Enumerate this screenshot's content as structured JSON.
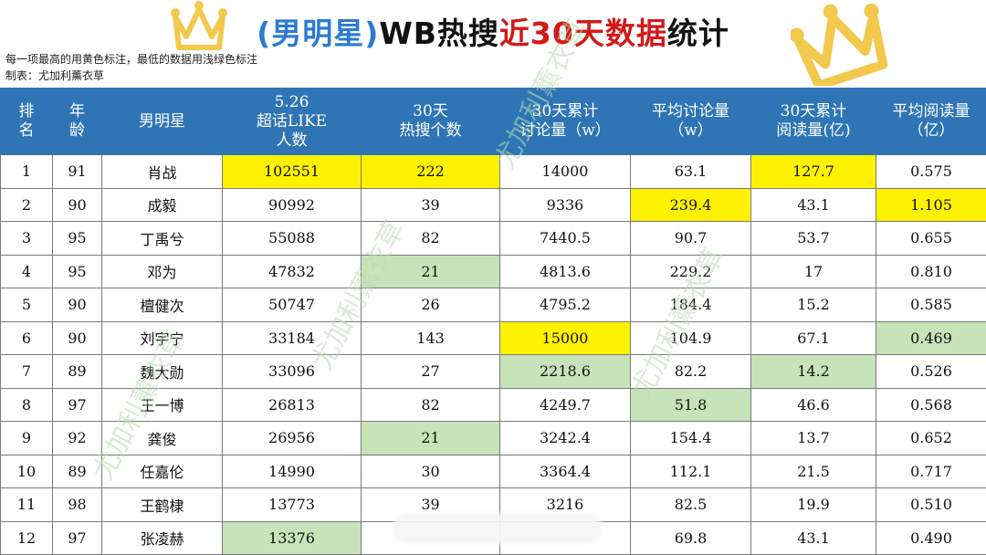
{
  "title": {
    "part1": "(男明星)",
    "part2": "WB热搜",
    "part3": "近30天数据",
    "part4": "统计"
  },
  "notes": {
    "line1": "每一项最高的用黄色标注，最低的数据用浅绿色标注",
    "line2": "制表：尤加利薰衣草"
  },
  "headers": {
    "rank": [
      "排",
      "名"
    ],
    "age": [
      "年",
      "龄"
    ],
    "star": "男明星",
    "like": [
      "5.26",
      "超话LIKE",
      "人数"
    ],
    "hot": [
      "30天",
      "热搜个数"
    ],
    "discuss": [
      "30天累计",
      "讨论量（w）"
    ],
    "avg_discuss": [
      "平均讨论量",
      "（w）"
    ],
    "read": [
      "30天累计",
      "阅读量(亿)"
    ],
    "avg_read": [
      "平均阅读量",
      "（亿）"
    ]
  },
  "rows": [
    {
      "rank": "1",
      "age": "91",
      "name": "肖战",
      "like": "102551",
      "hot": "222",
      "discuss": "14000",
      "avg_discuss": "63.1",
      "read": "127.7",
      "avg_read": "0.575"
    },
    {
      "rank": "2",
      "age": "90",
      "name": "成毅",
      "like": "90992",
      "hot": "39",
      "discuss": "9336",
      "avg_discuss": "239.4",
      "read": "43.1",
      "avg_read": "1.105"
    },
    {
      "rank": "3",
      "age": "95",
      "name": "丁禹兮",
      "like": "55088",
      "hot": "82",
      "discuss": "7440.5",
      "avg_discuss": "90.7",
      "read": "53.7",
      "avg_read": "0.655"
    },
    {
      "rank": "4",
      "age": "95",
      "name": "邓为",
      "like": "47832",
      "hot": "21",
      "discuss": "4813.6",
      "avg_discuss": "229.2",
      "read": "17",
      "avg_read": "0.810"
    },
    {
      "rank": "5",
      "age": "90",
      "name": "檀健次",
      "like": "50747",
      "hot": "26",
      "discuss": "4795.2",
      "avg_discuss": "184.4",
      "read": "15.2",
      "avg_read": "0.585"
    },
    {
      "rank": "6",
      "age": "90",
      "name": "刘宇宁",
      "like": "33184",
      "hot": "143",
      "discuss": "15000",
      "avg_discuss": "104.9",
      "read": "67.1",
      "avg_read": "0.469"
    },
    {
      "rank": "7",
      "age": "89",
      "name": "魏大勋",
      "like": "33096",
      "hot": "27",
      "discuss": "2218.6",
      "avg_discuss": "82.2",
      "read": "14.2",
      "avg_read": "0.526"
    },
    {
      "rank": "8",
      "age": "97",
      "name": "王一博",
      "like": "26813",
      "hot": "82",
      "discuss": "4249.7",
      "avg_discuss": "51.8",
      "read": "46.6",
      "avg_read": "0.568"
    },
    {
      "rank": "9",
      "age": "92",
      "name": "龚俊",
      "like": "26956",
      "hot": "21",
      "discuss": "3242.4",
      "avg_discuss": "154.4",
      "read": "13.7",
      "avg_read": "0.652"
    },
    {
      "rank": "10",
      "age": "89",
      "name": "任嘉伦",
      "like": "14990",
      "hot": "30",
      "discuss": "3364.4",
      "avg_discuss": "112.1",
      "read": "21.5",
      "avg_read": "0.717"
    },
    {
      "rank": "11",
      "age": "98",
      "name": "王鹤棣",
      "like": "13773",
      "hot": "39",
      "discuss": "3216",
      "avg_discuss": "82.5",
      "read": "19.9",
      "avg_read": "0.510"
    },
    {
      "rank": "12",
      "age": "97",
      "name": "张凌赫",
      "like": "13376",
      "hot": "",
      "discuss": "",
      "avg_discuss": "69.8",
      "read": "43.1",
      "avg_read": "0.490"
    }
  ],
  "highlights": {
    "yellow": [
      [
        0,
        "like"
      ],
      [
        0,
        "hot"
      ],
      [
        0,
        "read"
      ],
      [
        1,
        "avg_discuss"
      ],
      [
        1,
        "avg_read"
      ],
      [
        5,
        "discuss"
      ]
    ],
    "green": [
      [
        3,
        "hot"
      ],
      [
        5,
        "avg_read"
      ],
      [
        6,
        "discuss"
      ],
      [
        6,
        "read"
      ],
      [
        7,
        "avg_discuss"
      ],
      [
        8,
        "hot"
      ],
      [
        11,
        "like"
      ]
    ]
  },
  "colors": {
    "header_bg": "#2f75b5",
    "highlight_max": "#fff200",
    "highlight_min": "#c7e3b9",
    "crown": "#f2c94c",
    "title_blue": "#2a7bd3",
    "title_red": "#d21919"
  },
  "icons": [
    "crown-icon"
  ],
  "watermark": "尤加利薰衣草"
}
